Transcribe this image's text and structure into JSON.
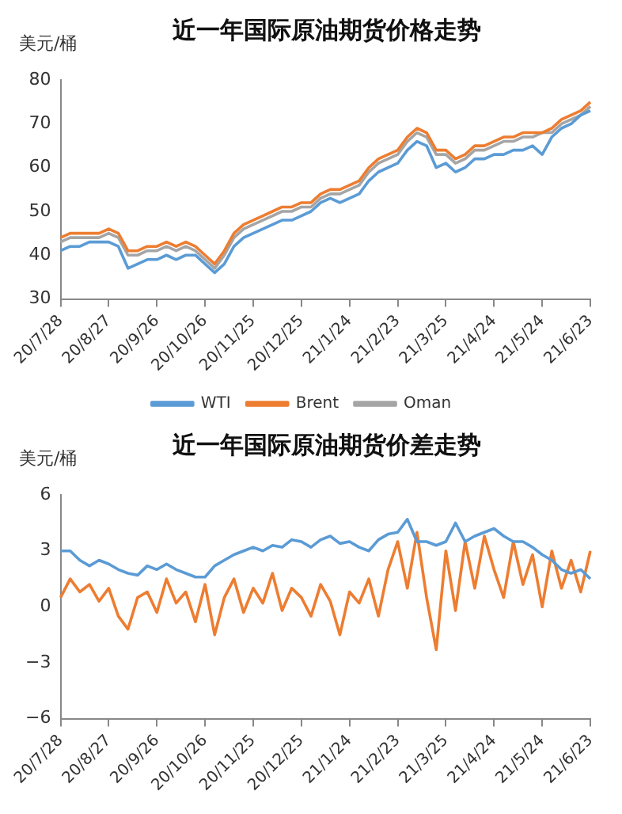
{
  "chart_data": [
    {
      "type": "line",
      "title": "近一年国际原油期货价格走势",
      "ylabel": "美元/桶",
      "categories": [
        "20/7/28",
        null,
        null,
        null,
        null,
        "20/8/27",
        null,
        null,
        null,
        null,
        "20/9/26",
        null,
        null,
        null,
        null,
        "20/10/26",
        null,
        null,
        null,
        null,
        "20/11/25",
        null,
        null,
        null,
        null,
        "20/12/25",
        null,
        null,
        null,
        null,
        "21/1/24",
        null,
        null,
        null,
        null,
        "21/2/23",
        null,
        null,
        null,
        null,
        "21/3/25",
        null,
        null,
        null,
        null,
        "21/4/24",
        null,
        null,
        null,
        null,
        "21/5/24",
        null,
        null,
        null,
        null,
        "21/6/23"
      ],
      "series": [
        {
          "name": "WTI",
          "color": "#5b9bd5",
          "values": [
            41,
            42,
            42,
            43,
            43,
            43,
            42,
            37,
            38,
            39,
            39,
            40,
            39,
            40,
            40,
            38,
            36,
            38,
            42,
            44,
            45,
            46,
            47,
            48,
            48,
            49,
            50,
            52,
            53,
            52,
            53,
            54,
            57,
            59,
            60,
            61,
            64,
            66,
            65,
            60,
            61,
            59,
            60,
            62,
            62,
            63,
            63,
            64,
            64,
            65,
            63,
            67,
            69,
            70,
            72,
            73
          ]
        },
        {
          "name": "Brent",
          "color": "#ed7d31",
          "values": [
            44,
            45,
            45,
            45,
            45,
            46,
            45,
            41,
            41,
            42,
            42,
            43,
            42,
            43,
            42,
            40,
            38,
            41,
            45,
            47,
            48,
            49,
            50,
            51,
            51,
            52,
            52,
            54,
            55,
            55,
            56,
            57,
            60,
            62,
            63,
            64,
            67,
            69,
            68,
            64,
            64,
            62,
            63,
            65,
            65,
            66,
            67,
            67,
            68,
            68,
            68,
            69,
            71,
            72,
            73,
            75
          ]
        },
        {
          "name": "Oman",
          "color": "#a5a5a5",
          "values": [
            43,
            44,
            44,
            44,
            44,
            45,
            44,
            40,
            40,
            41,
            41,
            42,
            41,
            42,
            41,
            39,
            37,
            40,
            44,
            46,
            47,
            48,
            49,
            50,
            50,
            51,
            51,
            53,
            54,
            54,
            55,
            56,
            59,
            61,
            62,
            63,
            66,
            68,
            67,
            63,
            63,
            61,
            62,
            64,
            64,
            65,
            66,
            66,
            67,
            67,
            68,
            68,
            70,
            71,
            72,
            74
          ]
        }
      ],
      "ylim": [
        30,
        80
      ],
      "yticks": [
        30,
        40,
        50,
        60,
        70,
        80
      ],
      "legend": "bottom",
      "grid": false
    },
    {
      "type": "line",
      "title": "近一年国际原油期货价差走势",
      "ylabel": "美元/桶",
      "categories": [
        "20/7/28",
        null,
        null,
        null,
        null,
        "20/8/27",
        null,
        null,
        null,
        null,
        "20/9/26",
        null,
        null,
        null,
        null,
        "20/10/26",
        null,
        null,
        null,
        null,
        "20/11/25",
        null,
        null,
        null,
        null,
        "20/12/25",
        null,
        null,
        null,
        null,
        "21/1/24",
        null,
        null,
        null,
        null,
        "21/2/23",
        null,
        null,
        null,
        null,
        "21/3/25",
        null,
        null,
        null,
        null,
        "21/4/24",
        null,
        null,
        null,
        null,
        "21/5/24",
        null,
        null,
        null,
        null,
        "21/6/23"
      ],
      "series": [
        {
          "color": "#5b9bd5",
          "values": [
            3,
            3,
            2.5,
            2.2,
            2.5,
            2.3,
            2,
            1.8,
            1.7,
            2.2,
            2,
            2.3,
            2,
            1.8,
            1.6,
            1.6,
            2.2,
            2.5,
            2.8,
            3,
            3.2,
            3,
            3.3,
            3.2,
            3.6,
            3.5,
            3.2,
            3.6,
            3.8,
            3.4,
            3.5,
            3.2,
            3,
            3.6,
            3.9,
            4,
            4.7,
            3.5,
            3.5,
            3.3,
            3.5,
            4.5,
            3.5,
            3.8,
            4,
            4.2,
            3.8,
            3.5,
            3.5,
            3.2,
            2.8,
            2.5,
            2,
            1.8,
            2,
            1.5
          ]
        },
        {
          "color": "#ed7d31",
          "values": [
            0.5,
            1.5,
            0.8,
            1.2,
            0.3,
            1,
            -0.5,
            -1.2,
            0.5,
            0.8,
            -0.3,
            1.5,
            0.2,
            0.8,
            -0.8,
            1.2,
            -1.5,
            0.5,
            1.5,
            -0.3,
            1,
            0.2,
            1.8,
            -0.2,
            1,
            0.5,
            -0.5,
            1.2,
            0.3,
            -1.5,
            0.8,
            0.2,
            1.5,
            -0.5,
            2,
            3.5,
            1,
            4,
            0.5,
            -2.3,
            3,
            -0.2,
            3.5,
            1,
            3.8,
            2,
            0.5,
            3.5,
            1.2,
            2.8,
            0,
            3,
            1,
            2.5,
            0.8,
            3
          ]
        }
      ],
      "ylim": [
        -6,
        6
      ],
      "yticks": [
        -6,
        -3,
        0,
        3,
        6
      ],
      "grid": false
    }
  ]
}
